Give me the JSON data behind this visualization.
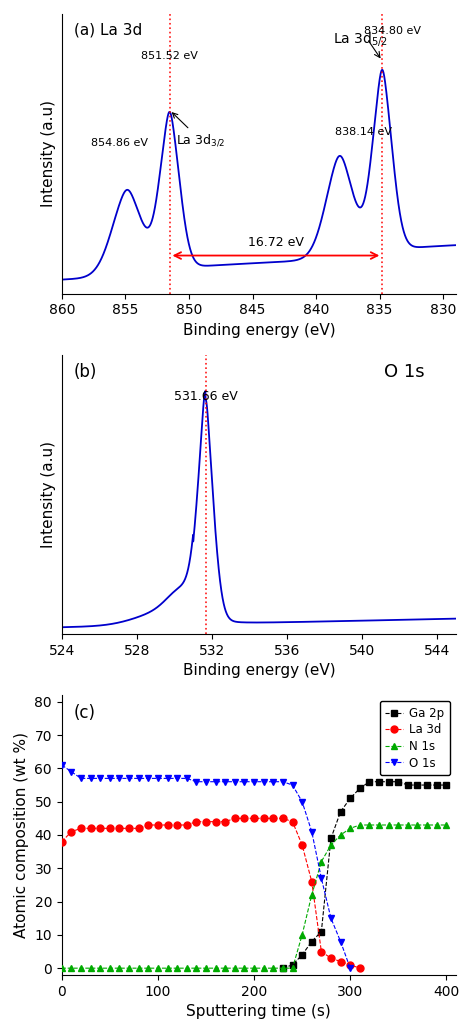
{
  "panel_a": {
    "title": "(a) La 3d",
    "xlabel": "Binding energy (eV)",
    "ylabel": "Intensity (a.u)",
    "xlim": [
      860,
      829
    ],
    "line_color": "#0000CC",
    "la3d32_main": 851.52,
    "la3d32_sat": 854.86,
    "la3d52_main": 834.8,
    "la3d52_sat": 838.14,
    "splitting": "16.72 eV"
  },
  "panel_b": {
    "title": "O 1s",
    "xlabel": "Binding energy (eV)",
    "ylabel": "Intensity (a.u)",
    "xlim": [
      524,
      545
    ],
    "peak": 531.66,
    "line_color": "#0000CC"
  },
  "panel_c": {
    "xlabel": "Sputtering time (s)",
    "ylabel": "Atomic composition (wt %)",
    "xlim": [
      0,
      410
    ],
    "ylim": [
      -2,
      82
    ],
    "yticks": [
      0,
      10,
      20,
      30,
      40,
      50,
      60,
      70,
      80
    ],
    "xticks": [
      0,
      100,
      200,
      300,
      400
    ],
    "ga2p_x": [
      230,
      240,
      250,
      260,
      270,
      280,
      290,
      300,
      310,
      320,
      330,
      340,
      350,
      360,
      370,
      380,
      390,
      400
    ],
    "ga2p_y": [
      0,
      1,
      4,
      8,
      11,
      39,
      47,
      51,
      54,
      56,
      56,
      56,
      56,
      55,
      55,
      55,
      55,
      55
    ],
    "la3d_x": [
      0,
      10,
      20,
      30,
      40,
      50,
      60,
      70,
      80,
      90,
      100,
      110,
      120,
      130,
      140,
      150,
      160,
      170,
      180,
      190,
      200,
      210,
      220,
      230,
      240,
      250,
      260,
      270,
      280,
      290,
      300,
      310
    ],
    "la3d_y": [
      38,
      41,
      42,
      42,
      42,
      42,
      42,
      42,
      42,
      43,
      43,
      43,
      43,
      43,
      44,
      44,
      44,
      44,
      45,
      45,
      45,
      45,
      45,
      45,
      44,
      37,
      26,
      5,
      3,
      2,
      1,
      0
    ],
    "n1s_x": [
      0,
      10,
      20,
      30,
      40,
      50,
      60,
      70,
      80,
      90,
      100,
      110,
      120,
      130,
      140,
      150,
      160,
      170,
      180,
      190,
      200,
      210,
      220,
      230,
      240,
      250,
      260,
      270,
      280,
      290,
      300,
      310,
      320,
      330,
      340,
      350,
      360,
      370,
      380,
      390,
      400
    ],
    "n1s_y": [
      0,
      0,
      0,
      0,
      0,
      0,
      0,
      0,
      0,
      0,
      0,
      0,
      0,
      0,
      0,
      0,
      0,
      0,
      0,
      0,
      0,
      0,
      0,
      0,
      0,
      10,
      22,
      32,
      37,
      40,
      42,
      43,
      43,
      43,
      43,
      43,
      43,
      43,
      43,
      43,
      43
    ],
    "o1s_x": [
      0,
      10,
      20,
      30,
      40,
      50,
      60,
      70,
      80,
      90,
      100,
      110,
      120,
      130,
      140,
      150,
      160,
      170,
      180,
      190,
      200,
      210,
      220,
      230,
      240,
      250,
      260,
      270,
      280,
      290,
      300
    ],
    "o1s_y": [
      61,
      59,
      57,
      57,
      57,
      57,
      57,
      57,
      57,
      57,
      57,
      57,
      57,
      57,
      56,
      56,
      56,
      56,
      56,
      56,
      56,
      56,
      56,
      56,
      55,
      50,
      41,
      27,
      15,
      8,
      0
    ],
    "ga2p_color": "#000000",
    "la3d_color": "#FF0000",
    "n1s_color": "#00AA00",
    "o1s_color": "#0000FF"
  }
}
